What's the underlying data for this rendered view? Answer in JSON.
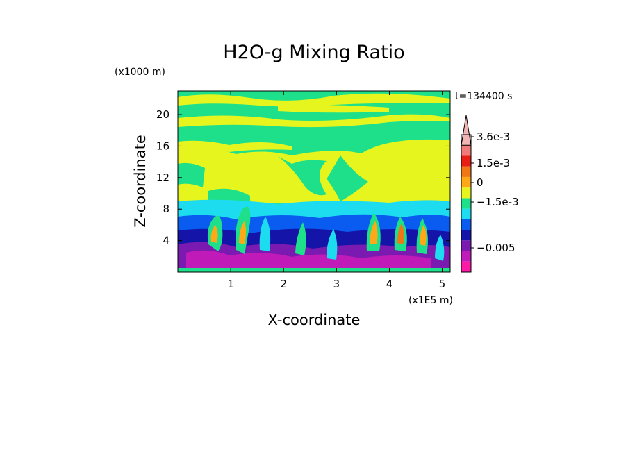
{
  "chart_data": {
    "type": "heatmap",
    "title": "H2O-g Mixing Ratio",
    "xlabel": "X-coordinate",
    "ylabel": "Z-coordinate",
    "x_unit": "(x1E5 m)",
    "y_unit": "(x1000 m)",
    "time_label": "t=134400 s",
    "xlim": [
      0,
      5.15
    ],
    "ylim": [
      0,
      23
    ],
    "x_ticks": [
      {
        "value": 1,
        "label": "1"
      },
      {
        "value": 2,
        "label": "2"
      },
      {
        "value": 3,
        "label": "3"
      },
      {
        "value": 4,
        "label": "4"
      },
      {
        "value": 5,
        "label": "5"
      }
    ],
    "y_ticks": [
      {
        "value": 4,
        "label": "4"
      },
      {
        "value": 8,
        "label": "8"
      },
      {
        "value": 12,
        "label": "12"
      },
      {
        "value": 16,
        "label": "16"
      },
      {
        "value": 20,
        "label": "20"
      }
    ],
    "colorbar": {
      "colors": [
        "#ff1aa6",
        "#c01ab8",
        "#7a1ab0",
        "#1414a8",
        "#0a5cf0",
        "#1edcf0",
        "#1ee08a",
        "#e6f51e",
        "#ffa818",
        "#f07814",
        "#e81e14",
        "#f07a7a",
        "#f0b4b4"
      ],
      "tick_labels": [
        {
          "value": "3.6e-3",
          "label": "3.6e-3"
        },
        {
          "value": "1.5e-3",
          "label": "1.5e-3"
        },
        {
          "value": "0",
          "label": "0"
        },
        {
          "value": "-1.5e-3",
          "label": "−1.5e-3"
        },
        {
          "value": "-0.005",
          "label": "−0.005"
        }
      ]
    },
    "field_regions": [
      {
        "z_range": [
          0.2,
          3.2
        ],
        "dominant_level": "purple"
      },
      {
        "z_range": [
          3.2,
          7.0
        ],
        "dominant_level": "blue / purple plumes with orange cores"
      },
      {
        "z_range": [
          7.0,
          9.0
        ],
        "dominant_level": "cyan"
      },
      {
        "z_range": [
          9.0,
          16.5
        ],
        "dominant_level": "yellow with green intrusions"
      },
      {
        "z_range": [
          16.5,
          23.0
        ],
        "dominant_level": "green with yellow streaks"
      }
    ]
  }
}
